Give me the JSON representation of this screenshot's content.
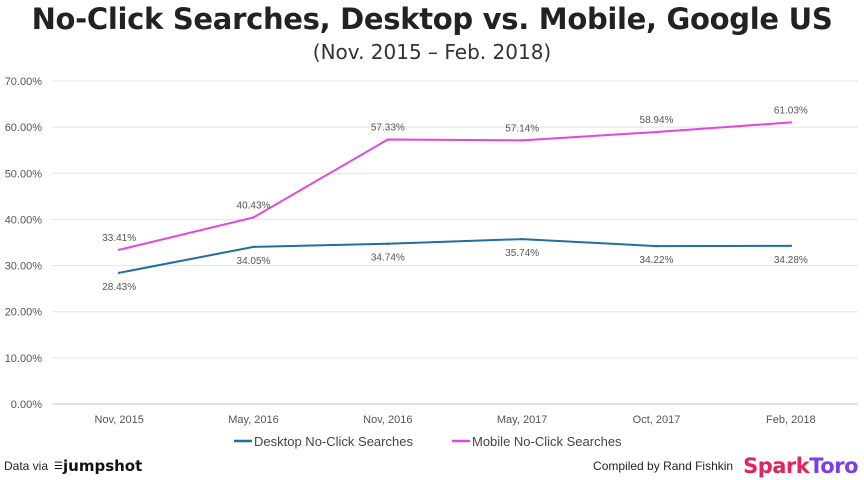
{
  "header": {
    "title": "No-Click Searches, Desktop vs. Mobile, Google US",
    "subtitle": "(Nov. 2015 – Feb. 2018)"
  },
  "chart_data": {
    "type": "line",
    "categories": [
      "Nov, 2015",
      "May, 2016",
      "Nov, 2016",
      "May, 2017",
      "Oct, 2017",
      "Feb, 2018"
    ],
    "ylim": [
      0,
      70
    ],
    "yticks": [
      "0.00%",
      "10.00%",
      "20.00%",
      "30.00%",
      "40.00%",
      "50.00%",
      "60.00%",
      "70.00%"
    ],
    "grid": true,
    "legend_position": "bottom",
    "series": [
      {
        "name": "Desktop No-Click Searches",
        "color": "#1f6f9f",
        "values": [
          28.43,
          34.05,
          34.74,
          35.74,
          34.22,
          34.28
        ],
        "labels": [
          "28.43%",
          "34.05%",
          "34.74%",
          "35.74%",
          "34.22%",
          "34.28%"
        ],
        "label_position": "below"
      },
      {
        "name": "Mobile No-Click Searches",
        "color": "#e645d9",
        "values": [
          33.41,
          40.43,
          57.33,
          57.14,
          58.94,
          61.03
        ],
        "labels": [
          "33.41%",
          "40.43%",
          "57.33%",
          "57.14%",
          "58.94%",
          "61.03%"
        ],
        "label_position": "above"
      }
    ]
  },
  "footer": {
    "data_via": "Data via",
    "jumpshot_logo": "jumpshot",
    "compiled_by": "Compiled by Rand Fishkin",
    "sparktoro_logo_spark": "Spark",
    "sparktoro_logo_toro": "Toro"
  }
}
